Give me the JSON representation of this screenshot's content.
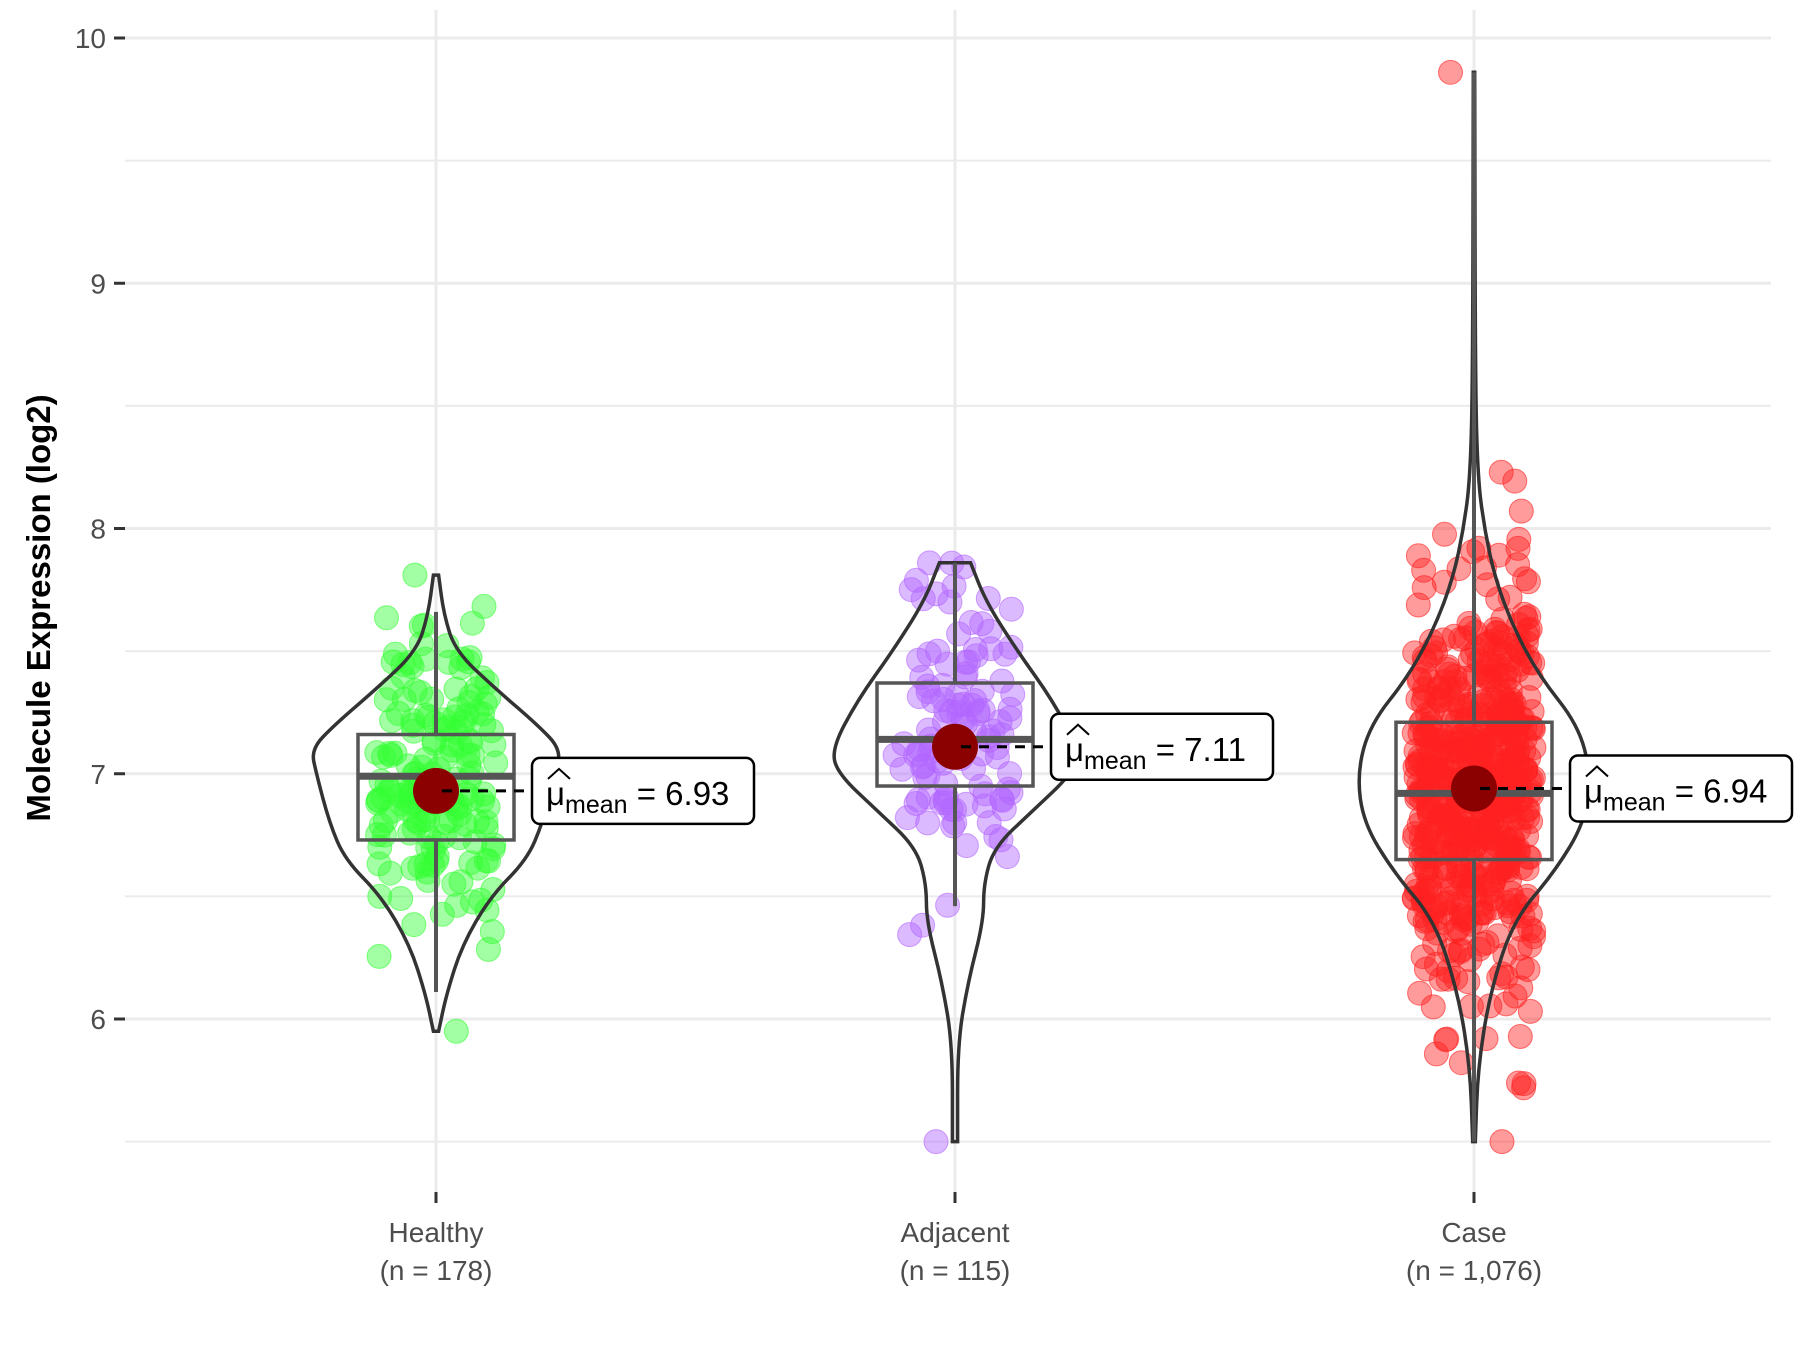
{
  "chart_data": {
    "type": "violin",
    "title": "",
    "xlabel": "",
    "ylabel": "Molecule Expression (log2)",
    "ylim": [
      5.45,
      10.1
    ],
    "yticks": [
      6,
      7,
      8,
      9,
      10
    ],
    "ytick_labels": [
      "6",
      "7",
      "8",
      "9",
      "10"
    ],
    "grid": true,
    "mean_label_symbol": "μ",
    "mean_label_subscript": "mean",
    "mean_label_eq": "=",
    "groups": [
      {
        "name": "Healthy",
        "n_label": "(n = 178)",
        "n": 178,
        "color": "#33ff33",
        "mean": 6.93,
        "mean_label": "6.93",
        "median": 6.99,
        "q1": 6.73,
        "q3": 7.16,
        "whisker_low": 6.11,
        "whisker_high": 7.66,
        "min": 5.95,
        "max": 7.81,
        "violin_profile": [
          [
            5.95,
            0.02
          ],
          [
            6.1,
            0.08
          ],
          [
            6.3,
            0.2
          ],
          [
            6.5,
            0.42
          ],
          [
            6.65,
            0.7
          ],
          [
            6.8,
            0.82
          ],
          [
            7.0,
            0.92
          ],
          [
            7.1,
            0.96
          ],
          [
            7.2,
            0.78
          ],
          [
            7.35,
            0.45
          ],
          [
            7.5,
            0.15
          ],
          [
            7.65,
            0.06
          ],
          [
            7.81,
            0.02
          ]
        ]
      },
      {
        "name": "Adjacent",
        "n_label": "(n = 115)",
        "n": 115,
        "color": "#b266ff",
        "mean": 7.11,
        "mean_label": "7.11",
        "median": 7.14,
        "q1": 6.95,
        "q3": 7.37,
        "whisker_low": 6.46,
        "whisker_high": 7.86,
        "min": 5.5,
        "max": 7.86,
        "violin_profile": [
          [
            5.5,
            0.02
          ],
          [
            5.9,
            0.02
          ],
          [
            6.15,
            0.1
          ],
          [
            6.4,
            0.22
          ],
          [
            6.55,
            0.22
          ],
          [
            6.7,
            0.3
          ],
          [
            6.85,
            0.6
          ],
          [
            7.0,
            0.9
          ],
          [
            7.1,
            0.95
          ],
          [
            7.3,
            0.75
          ],
          [
            7.5,
            0.48
          ],
          [
            7.7,
            0.24
          ],
          [
            7.86,
            0.12
          ]
        ]
      },
      {
        "name": "Case",
        "n_label": "(n = 1,076)",
        "n": 1076,
        "color": "#ff2222",
        "mean": 6.94,
        "mean_label": "6.94",
        "median": 6.92,
        "q1": 6.65,
        "q3": 7.21,
        "whisker_low": 5.5,
        "whisker_high": 9.86,
        "min": 5.5,
        "max": 9.86,
        "violin_profile": [
          [
            5.5,
            0.01
          ],
          [
            5.8,
            0.03
          ],
          [
            6.1,
            0.12
          ],
          [
            6.4,
            0.3
          ],
          [
            6.6,
            0.62
          ],
          [
            6.8,
            0.85
          ],
          [
            7.0,
            0.9
          ],
          [
            7.2,
            0.8
          ],
          [
            7.4,
            0.5
          ],
          [
            7.6,
            0.3
          ],
          [
            7.8,
            0.16
          ],
          [
            8.0,
            0.08
          ],
          [
            8.2,
            0.03
          ],
          [
            8.6,
            0.01
          ],
          [
            9.86,
            0.005
          ]
        ]
      }
    ]
  }
}
